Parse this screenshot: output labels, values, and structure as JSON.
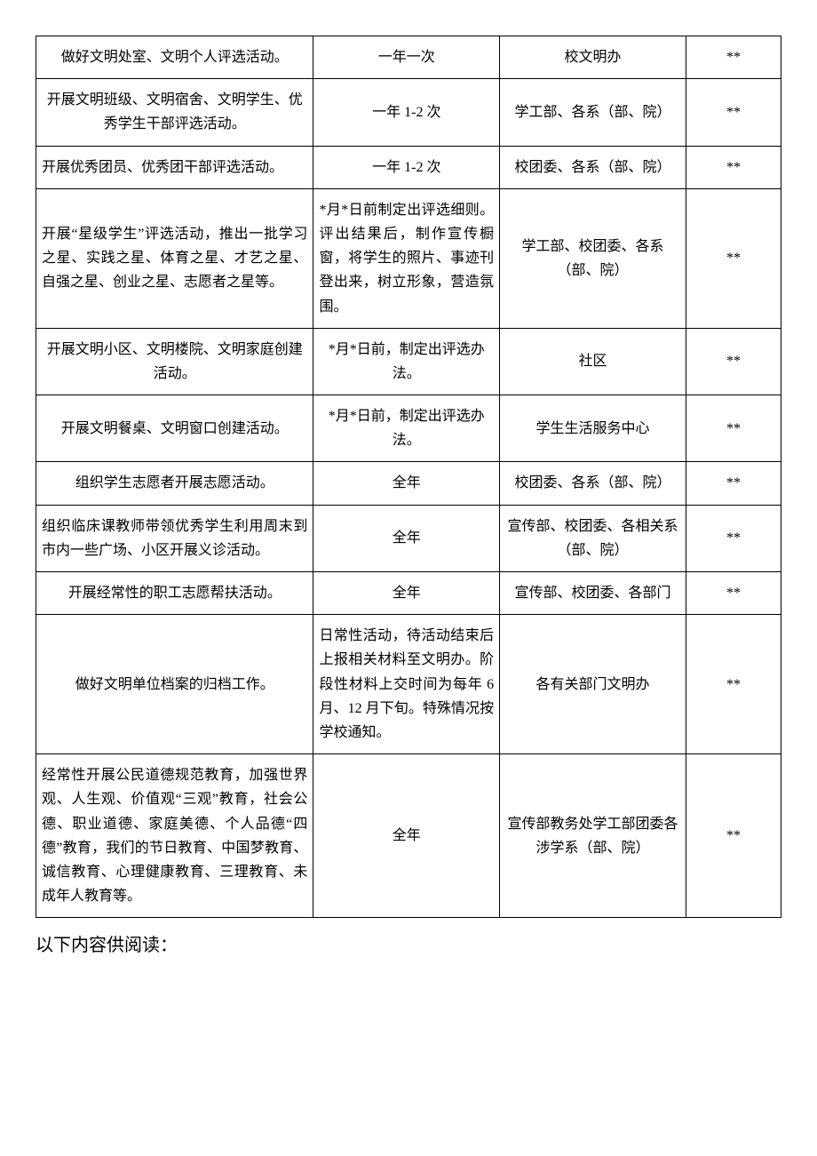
{
  "table": {
    "col_classes": [
      "c0",
      "c1",
      "c2",
      "c3"
    ],
    "rows": [
      {
        "cells": [
          "做好文明处室、文明个人评选活动。",
          "一年一次",
          "校文明办",
          "**"
        ],
        "align": [
          "ctr",
          "",
          "",
          ""
        ]
      },
      {
        "cells": [
          "开展文明班级、文明宿舍、文明学生、优秀学生干部评选活动。",
          "一年 1-2 次",
          "学工部、各系（部、院）",
          "**"
        ],
        "align": [
          "ctr",
          "",
          "",
          ""
        ]
      },
      {
        "cells": [
          "开展优秀团员、优秀团干部评选活动。",
          "一年 1-2 次",
          "校团委、各系（部、院）",
          "**"
        ],
        "align": [
          "",
          "",
          "",
          ""
        ]
      },
      {
        "cells": [
          "开展“星级学生”评选活动，推出一批学习之星、实践之星、体育之星、才艺之星、自强之星、创业之星、志愿者之星等。",
          "*月*日前制定出评选细则。评出结果后，制作宣传橱窗，将学生的照片、事迹刊登出来，树立形象，营造氛围。",
          "学工部、校团委、各系（部、院）",
          "**"
        ],
        "align": [
          "",
          "just",
          "",
          ""
        ]
      },
      {
        "cells": [
          "开展文明小区、文明楼院、文明家庭创建活动。",
          "*月*日前，制定出评选办法。",
          "社区",
          "**"
        ],
        "align": [
          "ctr",
          "",
          "",
          ""
        ]
      },
      {
        "cells": [
          "开展文明餐桌、文明窗口创建活动。",
          "*月*日前，制定出评选办法。",
          "学生生活服务中心",
          "**"
        ],
        "align": [
          "ctr",
          "",
          "",
          ""
        ]
      },
      {
        "cells": [
          "组织学生志愿者开展志愿活动。",
          "全年",
          "校团委、各系（部、院）",
          "**"
        ],
        "align": [
          "ctr",
          "",
          "",
          ""
        ]
      },
      {
        "cells": [
          "组织临床课教师带领优秀学生利用周末到市内一些广场、小区开展义诊活动。",
          "全年",
          "宣传部、校团委、各相关系（部、院）",
          "**"
        ],
        "align": [
          "",
          "",
          "",
          ""
        ]
      },
      {
        "cells": [
          "开展经常性的职工志愿帮扶活动。",
          "全年",
          "宣传部、校团委、各部门",
          "**"
        ],
        "align": [
          "ctr",
          "",
          "",
          ""
        ]
      },
      {
        "cells": [
          "做好文明单位档案的归档工作。",
          "日常性活动，待活动结束后上报相关材料至文明办。阶段性材料上交时间为每年 6 月、12 月下旬。特殊情况按学校通知。",
          "各有关部门文明办",
          "**"
        ],
        "align": [
          "ctr",
          "just",
          "",
          ""
        ]
      },
      {
        "cells": [
          "经常性开展公民道德规范教育，加强世界观、人生观、价值观“三观”教育，社会公德、职业道德、家庭美德、个人品德“四德”教育，我们的节日教育、中国梦教育、诚信教育、心理健康教育、三理教育、未成年人教育等。",
          "全年",
          "宣传部教务处学工部团委各涉学系（部、院）",
          "**"
        ],
        "align": [
          "",
          "",
          "",
          ""
        ]
      }
    ]
  },
  "footer": "以下内容供阅读："
}
